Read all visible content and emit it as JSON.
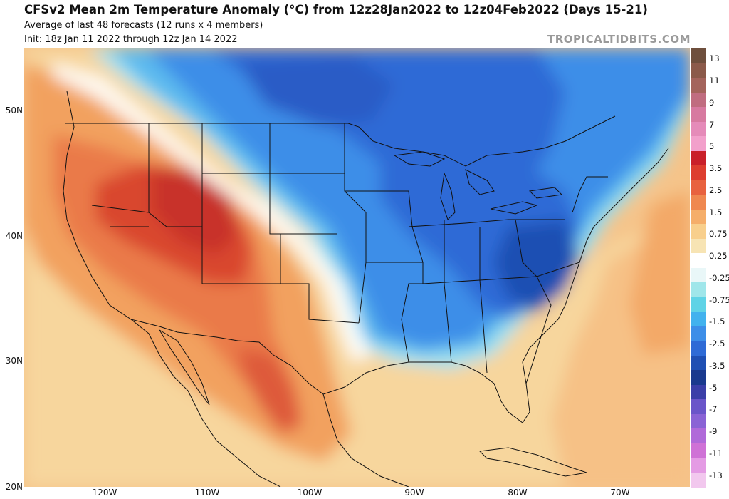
{
  "header": {
    "title": "CFSv2 Mean 2m Temperature Anomaly (°C) from 12z28Jan2022 to 12z04Feb2022 (Days 15-21)",
    "subtitle1": "Average of last 48 forecasts (12 runs x 4 members)",
    "subtitle2": "Init: 18z Jan 11 2022 through 12z Jan 14 2022",
    "brand": "TROPICALTIDBITS.COM"
  },
  "axes": {
    "lat_labels": [
      "50N",
      "40N",
      "30N",
      "20N"
    ],
    "lon_labels": [
      "120W",
      "110W",
      "100W",
      "90W",
      "80W",
      "70W"
    ]
  },
  "colorbar": {
    "labels": [
      "13",
      "11",
      "9",
      "7",
      "5",
      "3.5",
      "2.5",
      "1.5",
      "0.75",
      "0.25",
      "-0.25",
      "-0.75",
      "-1.5",
      "-2.5",
      "-3.5",
      "-5",
      "-7",
      "-9",
      "-11",
      "-13"
    ],
    "colors": [
      "#6e4f3d",
      "#8b5a4a",
      "#a4645c",
      "#c06d80",
      "#d77aa0",
      "#e58bb9",
      "#f2a0cb",
      "#c9202a",
      "#dd3e2f",
      "#e8623f",
      "#ef8850",
      "#f5ae6a",
      "#f8cf8c",
      "#f7e4b4",
      "#ffffff",
      "#e9f7f8",
      "#9fe6ea",
      "#5fd3e6",
      "#42b2ee",
      "#3d8ee8",
      "#2f6bd6",
      "#1f4fb3",
      "#1a3a8e",
      "#3b3fa8",
      "#6a55c9",
      "#8a63d5",
      "#b06ad9",
      "#cf72d6",
      "#e49be4",
      "#f2c8ee"
    ],
    "colors_note_values": "top-to-bottom from +13 to -13"
  }
}
